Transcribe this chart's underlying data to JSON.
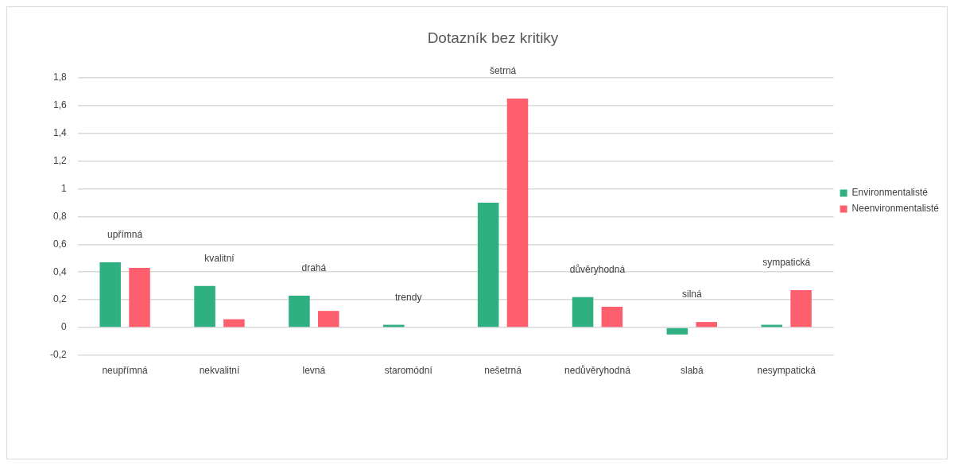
{
  "chart_data": {
    "type": "bar",
    "title": "Dotazník bez kritiky",
    "categories": [
      "neupřímná",
      "nekvalitní",
      "levná",
      "staromódní",
      "nešetrná",
      "nedůvěryhodná",
      "slabá",
      "nesympatická"
    ],
    "series": [
      {
        "name": "Environmentalisté",
        "color": "#2fb080",
        "values": [
          0.47,
          0.3,
          0.23,
          0.02,
          0.9,
          0.22,
          -0.05,
          0.02
        ]
      },
      {
        "name": "Neenvironmentalisté",
        "color": "#fe5f6e",
        "values": [
          0.43,
          0.06,
          0.12,
          0,
          1.65,
          0.15,
          0.04,
          0.27
        ]
      }
    ],
    "ylim": [
      -0.2,
      1.8
    ],
    "yticks": [
      {
        "value": -0.2,
        "label": "-0,2"
      },
      0,
      {
        "value": 0.2,
        "label": "0,2"
      },
      {
        "value": 0.4,
        "label": "0,4"
      },
      {
        "value": 0.6,
        "label": "0,6"
      },
      {
        "value": 0.8,
        "label": "0,8"
      },
      1,
      {
        "value": 1.2,
        "label": "1,2"
      },
      {
        "value": 1.4,
        "label": "1,4"
      },
      {
        "value": 1.6,
        "label": "1,6"
      },
      {
        "value": 1.8,
        "label": "1,8"
      }
    ],
    "annotations": [
      "upřímná",
      "kvalitní",
      "drahá",
      "trendy",
      "šetrná",
      "důvěryhodná",
      "silná",
      "sympatická"
    ],
    "grid": "y",
    "legend": "right"
  }
}
